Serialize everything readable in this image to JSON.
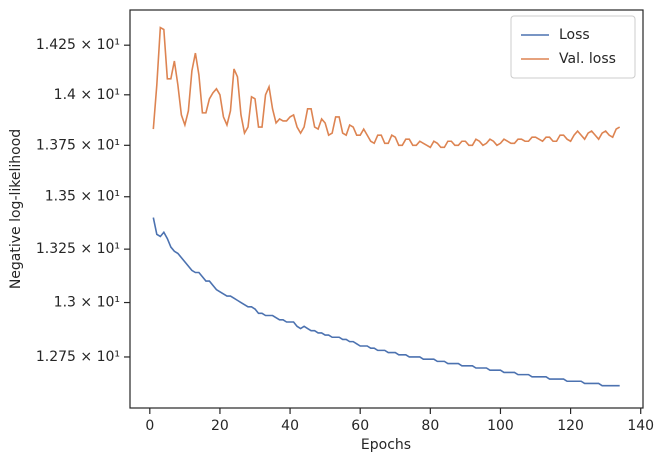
{
  "chart_data": {
    "type": "line",
    "xlabel": "Epochs",
    "ylabel": "Negative log-likelihood",
    "x": [
      1,
      2,
      3,
      4,
      5,
      6,
      7,
      8,
      9,
      10,
      11,
      12,
      13,
      14,
      15,
      16,
      17,
      18,
      19,
      20,
      21,
      22,
      23,
      24,
      25,
      26,
      27,
      28,
      29,
      30,
      31,
      32,
      33,
      34,
      35,
      36,
      37,
      38,
      39,
      40,
      41,
      42,
      43,
      44,
      45,
      46,
      47,
      48,
      49,
      50,
      51,
      52,
      53,
      54,
      55,
      56,
      57,
      58,
      59,
      60,
      61,
      62,
      63,
      64,
      65,
      66,
      67,
      68,
      69,
      70,
      71,
      72,
      73,
      74,
      75,
      76,
      77,
      78,
      79,
      80,
      81,
      82,
      83,
      84,
      85,
      86,
      87,
      88,
      89,
      90,
      91,
      92,
      93,
      94,
      95,
      96,
      97,
      98,
      99,
      100,
      101,
      102,
      103,
      104,
      105,
      106,
      107,
      108,
      109,
      110,
      111,
      112,
      113,
      114,
      115,
      116,
      117,
      118,
      119,
      120,
      121,
      122,
      123,
      124,
      125,
      126,
      127,
      128,
      129,
      130,
      131,
      132,
      133,
      134
    ],
    "series": [
      {
        "name": "Loss",
        "color": "#4c72b0",
        "values": [
          13.4,
          13.32,
          13.31,
          13.33,
          13.3,
          13.26,
          13.24,
          13.23,
          13.21,
          13.19,
          13.17,
          13.15,
          13.14,
          13.14,
          13.12,
          13.1,
          13.1,
          13.08,
          13.06,
          13.05,
          13.04,
          13.03,
          13.03,
          13.02,
          13.01,
          13.0,
          12.99,
          12.98,
          12.98,
          12.97,
          12.95,
          12.95,
          12.94,
          12.94,
          12.94,
          12.93,
          12.92,
          12.92,
          12.91,
          12.91,
          12.91,
          12.89,
          12.88,
          12.89,
          12.88,
          12.87,
          12.87,
          12.86,
          12.86,
          12.85,
          12.85,
          12.84,
          12.84,
          12.84,
          12.83,
          12.83,
          12.82,
          12.82,
          12.81,
          12.8,
          12.8,
          12.8,
          12.79,
          12.79,
          12.78,
          12.78,
          12.78,
          12.77,
          12.77,
          12.77,
          12.76,
          12.76,
          12.76,
          12.75,
          12.75,
          12.75,
          12.75,
          12.74,
          12.74,
          12.74,
          12.74,
          12.73,
          12.73,
          12.73,
          12.72,
          12.72,
          12.72,
          12.72,
          12.71,
          12.71,
          12.71,
          12.71,
          12.7,
          12.7,
          12.7,
          12.7,
          12.69,
          12.69,
          12.69,
          12.69,
          12.68,
          12.68,
          12.68,
          12.68,
          12.67,
          12.67,
          12.67,
          12.67,
          12.66,
          12.66,
          12.66,
          12.66,
          12.66,
          12.65,
          12.65,
          12.65,
          12.65,
          12.65,
          12.64,
          12.64,
          12.64,
          12.64,
          12.64,
          12.63,
          12.63,
          12.63,
          12.63,
          12.63,
          12.62,
          12.62,
          12.62,
          12.62,
          12.62,
          12.62
        ]
      },
      {
        "name": "Val. loss",
        "color": "#dd8452",
        "values": [
          13.83,
          14.05,
          14.34,
          14.33,
          14.08,
          14.08,
          14.17,
          14.05,
          13.9,
          13.85,
          13.92,
          14.12,
          14.21,
          14.1,
          13.91,
          13.91,
          13.98,
          14.01,
          14.03,
          14.0,
          13.89,
          13.85,
          13.92,
          14.13,
          14.09,
          13.9,
          13.81,
          13.84,
          13.99,
          13.98,
          13.84,
          13.84,
          14.0,
          14.04,
          13.93,
          13.86,
          13.88,
          13.87,
          13.87,
          13.89,
          13.9,
          13.84,
          13.81,
          13.84,
          13.93,
          13.93,
          13.84,
          13.83,
          13.88,
          13.86,
          13.8,
          13.81,
          13.89,
          13.89,
          13.81,
          13.8,
          13.85,
          13.84,
          13.8,
          13.8,
          13.83,
          13.8,
          13.77,
          13.76,
          13.8,
          13.8,
          13.76,
          13.76,
          13.8,
          13.79,
          13.75,
          13.75,
          13.78,
          13.78,
          13.75,
          13.75,
          13.77,
          13.76,
          13.75,
          13.74,
          13.77,
          13.76,
          13.74,
          13.74,
          13.77,
          13.77,
          13.75,
          13.75,
          13.77,
          13.77,
          13.75,
          13.75,
          13.78,
          13.77,
          13.75,
          13.76,
          13.78,
          13.77,
          13.75,
          13.76,
          13.78,
          13.77,
          13.76,
          13.76,
          13.78,
          13.78,
          13.77,
          13.77,
          13.79,
          13.79,
          13.78,
          13.77,
          13.79,
          13.79,
          13.77,
          13.77,
          13.8,
          13.8,
          13.78,
          13.77,
          13.8,
          13.82,
          13.8,
          13.78,
          13.81,
          13.82,
          13.8,
          13.78,
          13.81,
          13.82,
          13.8,
          13.79,
          13.83,
          13.84
        ]
      }
    ],
    "xlim": [
      -5.65,
      140.65
    ],
    "xticks": [
      0,
      20,
      40,
      60,
      80,
      100,
      120,
      140
    ],
    "ylim": [
      12.52,
      14.43
    ],
    "ylog": true,
    "yticks": [
      {
        "value": 12.75,
        "label": "1.275 × 10¹"
      },
      {
        "value": 13.0,
        "label": "1.3 × 10¹"
      },
      {
        "value": 13.25,
        "label": "1.325 × 10¹"
      },
      {
        "value": 13.5,
        "label": "1.35 × 10¹"
      },
      {
        "value": 13.75,
        "label": "1.375 × 10¹"
      },
      {
        "value": 14.0,
        "label": "1.4 × 10¹"
      },
      {
        "value": 14.25,
        "label": "1.425 × 10¹"
      }
    ],
    "grid": false,
    "legend": "upper right"
  }
}
